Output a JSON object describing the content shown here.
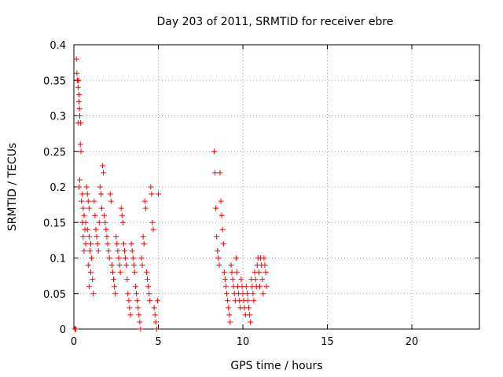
{
  "chart_data": {
    "type": "scatter",
    "title": "Day 203 of 2011, SRMTID for receiver ebre",
    "xlabel": "GPS time / hours",
    "ylabel": "SRMTID / TECUs",
    "xlim": [
      0,
      24
    ],
    "ylim": [
      0,
      0.4
    ],
    "x_ticks": [
      0,
      5,
      10,
      15,
      20
    ],
    "x_tick_labels": [
      "0",
      "5",
      "10",
      "15",
      "20"
    ],
    "y_ticks": [
      0,
      0.05,
      0.1,
      0.15,
      0.2,
      0.25,
      0.3,
      0.35,
      0.4
    ],
    "y_tick_labels": [
      "0",
      "0.05",
      "0.1",
      "0.15",
      "0.2",
      "0.25",
      "0.3",
      "0.35",
      "0.4"
    ],
    "grid": true,
    "marker": "+",
    "color": "#ff0000",
    "series": [
      {
        "name": "SRMTID",
        "points": [
          [
            0.05,
            0.0
          ],
          [
            0.1,
            0.0
          ],
          [
            0.12,
            0.0
          ],
          [
            0.15,
            0.38
          ],
          [
            0.18,
            0.36
          ],
          [
            0.2,
            0.35
          ],
          [
            0.22,
            0.35
          ],
          [
            0.25,
            0.34
          ],
          [
            0.28,
            0.35
          ],
          [
            0.3,
            0.33
          ],
          [
            0.3,
            0.32
          ],
          [
            0.33,
            0.31
          ],
          [
            0.35,
            0.3
          ],
          [
            0.25,
            0.29
          ],
          [
            0.4,
            0.29
          ],
          [
            0.38,
            0.26
          ],
          [
            0.42,
            0.25
          ],
          [
            0.3,
            0.2
          ],
          [
            0.35,
            0.21
          ],
          [
            0.5,
            0.19
          ],
          [
            0.45,
            0.18
          ],
          [
            0.55,
            0.17
          ],
          [
            0.6,
            0.16
          ],
          [
            0.5,
            0.15
          ],
          [
            0.65,
            0.14
          ],
          [
            0.55,
            0.13
          ],
          [
            0.7,
            0.12
          ],
          [
            0.6,
            0.11
          ],
          [
            0.75,
            0.2
          ],
          [
            0.8,
            0.19
          ],
          [
            0.85,
            0.18
          ],
          [
            0.9,
            0.17
          ],
          [
            0.7,
            0.15
          ],
          [
            0.8,
            0.14
          ],
          [
            0.9,
            0.13
          ],
          [
            1.0,
            0.12
          ],
          [
            0.95,
            0.11
          ],
          [
            1.05,
            0.1
          ],
          [
            0.85,
            0.09
          ],
          [
            1.0,
            0.08
          ],
          [
            1.1,
            0.07
          ],
          [
            0.9,
            0.06
          ],
          [
            1.15,
            0.05
          ],
          [
            1.2,
            0.18
          ],
          [
            1.25,
            0.16
          ],
          [
            1.3,
            0.14
          ],
          [
            1.35,
            0.13
          ],
          [
            1.4,
            0.12
          ],
          [
            1.45,
            0.11
          ],
          [
            1.5,
            0.15
          ],
          [
            1.55,
            0.2
          ],
          [
            1.6,
            0.19
          ],
          [
            1.65,
            0.17
          ],
          [
            1.7,
            0.23
          ],
          [
            1.75,
            0.22
          ],
          [
            1.8,
            0.16
          ],
          [
            1.85,
            0.15
          ],
          [
            1.9,
            0.14
          ],
          [
            1.95,
            0.13
          ],
          [
            2.0,
            0.12
          ],
          [
            2.05,
            0.11
          ],
          [
            2.1,
            0.1
          ],
          [
            2.15,
            0.19
          ],
          [
            2.2,
            0.18
          ],
          [
            2.25,
            0.09
          ],
          [
            2.3,
            0.08
          ],
          [
            2.35,
            0.07
          ],
          [
            2.4,
            0.06
          ],
          [
            2.45,
            0.05
          ],
          [
            2.5,
            0.13
          ],
          [
            2.55,
            0.12
          ],
          [
            2.6,
            0.11
          ],
          [
            2.65,
            0.1
          ],
          [
            2.7,
            0.09
          ],
          [
            2.75,
            0.08
          ],
          [
            2.8,
            0.17
          ],
          [
            2.85,
            0.16
          ],
          [
            2.9,
            0.15
          ],
          [
            2.95,
            0.12
          ],
          [
            3.0,
            0.11
          ],
          [
            3.05,
            0.1
          ],
          [
            3.1,
            0.09
          ],
          [
            3.15,
            0.07
          ],
          [
            3.2,
            0.05
          ],
          [
            3.25,
            0.04
          ],
          [
            3.3,
            0.03
          ],
          [
            3.35,
            0.02
          ],
          [
            3.4,
            0.12
          ],
          [
            3.45,
            0.11
          ],
          [
            3.5,
            0.1
          ],
          [
            3.55,
            0.09
          ],
          [
            3.6,
            0.08
          ],
          [
            3.65,
            0.06
          ],
          [
            3.7,
            0.05
          ],
          [
            3.75,
            0.04
          ],
          [
            3.8,
            0.03
          ],
          [
            3.85,
            0.02
          ],
          [
            3.9,
            0.01
          ],
          [
            3.95,
            0.0
          ],
          [
            4.0,
            0.1
          ],
          [
            4.05,
            0.09
          ],
          [
            4.1,
            0.13
          ],
          [
            4.15,
            0.12
          ],
          [
            4.2,
            0.18
          ],
          [
            4.25,
            0.17
          ],
          [
            4.3,
            0.08
          ],
          [
            4.35,
            0.07
          ],
          [
            4.4,
            0.06
          ],
          [
            4.45,
            0.05
          ],
          [
            4.5,
            0.04
          ],
          [
            4.55,
            0.2
          ],
          [
            4.6,
            0.19
          ],
          [
            4.65,
            0.15
          ],
          [
            4.7,
            0.14
          ],
          [
            4.75,
            0.03
          ],
          [
            4.8,
            0.02
          ],
          [
            4.85,
            0.01
          ],
          [
            4.9,
            0.0
          ],
          [
            4.95,
            0.04
          ],
          [
            5.0,
            0.19
          ],
          [
            8.3,
            0.25
          ],
          [
            8.35,
            0.22
          ],
          [
            8.4,
            0.17
          ],
          [
            8.45,
            0.13
          ],
          [
            8.5,
            0.11
          ],
          [
            8.55,
            0.1
          ],
          [
            8.6,
            0.09
          ],
          [
            8.65,
            0.22
          ],
          [
            8.7,
            0.18
          ],
          [
            8.75,
            0.16
          ],
          [
            8.8,
            0.14
          ],
          [
            8.85,
            0.12
          ],
          [
            8.9,
            0.08
          ],
          [
            8.95,
            0.07
          ],
          [
            9.0,
            0.06
          ],
          [
            9.05,
            0.05
          ],
          [
            9.1,
            0.04
          ],
          [
            9.15,
            0.03
          ],
          [
            9.2,
            0.02
          ],
          [
            9.25,
            0.01
          ],
          [
            9.3,
            0.09
          ],
          [
            9.35,
            0.08
          ],
          [
            9.4,
            0.07
          ],
          [
            9.45,
            0.06
          ],
          [
            9.5,
            0.05
          ],
          [
            9.55,
            0.04
          ],
          [
            9.6,
            0.1
          ],
          [
            9.65,
            0.08
          ],
          [
            9.7,
            0.06
          ],
          [
            9.75,
            0.05
          ],
          [
            9.8,
            0.04
          ],
          [
            9.85,
            0.03
          ],
          [
            9.9,
            0.07
          ],
          [
            9.95,
            0.06
          ],
          [
            10.0,
            0.05
          ],
          [
            10.05,
            0.04
          ],
          [
            10.1,
            0.03
          ],
          [
            10.15,
            0.02
          ],
          [
            10.2,
            0.06
          ],
          [
            10.25,
            0.05
          ],
          [
            10.3,
            0.04
          ],
          [
            10.35,
            0.03
          ],
          [
            10.4,
            0.02
          ],
          [
            10.45,
            0.01
          ],
          [
            10.5,
            0.07
          ],
          [
            10.55,
            0.06
          ],
          [
            10.6,
            0.05
          ],
          [
            10.65,
            0.04
          ],
          [
            10.7,
            0.08
          ],
          [
            10.75,
            0.07
          ],
          [
            10.8,
            0.06
          ],
          [
            10.85,
            0.09
          ],
          [
            10.9,
            0.1
          ],
          [
            10.95,
            0.08
          ],
          [
            11.0,
            0.06
          ],
          [
            11.05,
            0.1
          ],
          [
            11.1,
            0.09
          ],
          [
            11.15,
            0.07
          ],
          [
            11.2,
            0.05
          ],
          [
            11.25,
            0.1
          ],
          [
            11.3,
            0.09
          ],
          [
            11.35,
            0.08
          ],
          [
            11.4,
            0.06
          ]
        ]
      }
    ]
  }
}
